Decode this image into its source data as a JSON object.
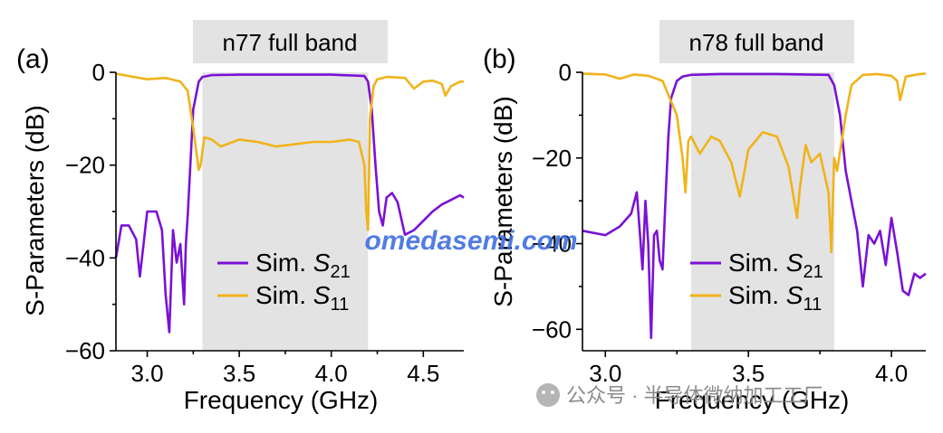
{
  "watermark": "omedasemi.com",
  "wechat_text": "公众号 · 半导体微纳加工工厂",
  "colors": {
    "s21": "#7a12d6",
    "s11": "#f0b31a",
    "band": "#e3e3e3",
    "watermark": "#3f6fe0"
  },
  "legend": {
    "s21_prefix": "Sim. ",
    "s21_var": "S",
    "s21_sub": "21",
    "s11_prefix": "Sim. ",
    "s11_var": "S",
    "s11_sub": "11"
  },
  "chart_data": [
    {
      "panel": "(a)",
      "type": "line",
      "title": "n77 full band",
      "xlabel": "Frequency (GHz)",
      "ylabel": "S-Parameters (dB)",
      "xlim": [
        2.83,
        4.72
      ],
      "ylim": [
        -60,
        0
      ],
      "xticks": [
        3.0,
        3.5,
        4.0,
        4.5
      ],
      "xtick_labels": [
        "3.0",
        "3.5",
        "4.0",
        "4.5"
      ],
      "yticks": [
        0,
        -20,
        -40,
        -60
      ],
      "ytick_labels": [
        "0",
        "−20",
        "−40",
        "−60"
      ],
      "shaded_band": [
        3.3,
        4.2
      ],
      "legend_position": "lower-center",
      "series": [
        {
          "name": "Sim. S21",
          "color": "#7a12d6",
          "x": [
            2.83,
            2.86,
            2.9,
            2.94,
            2.96,
            2.98,
            3.0,
            3.05,
            3.08,
            3.1,
            3.12,
            3.14,
            3.16,
            3.18,
            3.2,
            3.21,
            3.22,
            3.25,
            3.28,
            3.3,
            3.35,
            3.5,
            4.0,
            4.18,
            4.2,
            4.22,
            4.24,
            4.26,
            4.28,
            4.3,
            4.33,
            4.36,
            4.4,
            4.45,
            4.5,
            4.55,
            4.6,
            4.65,
            4.7,
            4.72
          ],
          "y": [
            -40,
            -33,
            -33,
            -36,
            -44,
            -37,
            -30,
            -30,
            -34,
            -48,
            -56,
            -34,
            -41,
            -37,
            -50,
            -37,
            -31,
            -8,
            -2,
            -1,
            -0.6,
            -0.5,
            -0.5,
            -0.8,
            -2,
            -8,
            -20,
            -30,
            -33,
            -27,
            -26,
            -28,
            -35,
            -34,
            -32,
            -30,
            -28.5,
            -27.5,
            -26.5,
            -27
          ]
        },
        {
          "name": "Sim. S11",
          "color": "#f0b31a",
          "x": [
            2.83,
            2.9,
            3.0,
            3.1,
            3.18,
            3.22,
            3.25,
            3.28,
            3.29,
            3.31,
            3.35,
            3.4,
            3.5,
            3.6,
            3.7,
            3.8,
            3.9,
            4.0,
            4.1,
            4.15,
            4.18,
            4.19,
            4.2,
            4.21,
            4.23,
            4.25,
            4.3,
            4.4,
            4.45,
            4.5,
            4.55,
            4.6,
            4.62,
            4.65,
            4.7,
            4.72
          ],
          "y": [
            -0.3,
            -0.8,
            -1.5,
            -1.2,
            -2,
            -4,
            -12,
            -21,
            -20,
            -14,
            -14.5,
            -16,
            -14.5,
            -15,
            -16,
            -15.5,
            -15,
            -15,
            -14.5,
            -15,
            -20,
            -30,
            -34,
            -10,
            -3,
            -1.5,
            -1,
            -1.2,
            -3.5,
            -2,
            -1.8,
            -2.5,
            -5,
            -3,
            -2,
            -2
          ]
        }
      ]
    },
    {
      "panel": "(b)",
      "type": "line",
      "title": "n78 full band",
      "xlabel": "Frequency (GHz)",
      "ylabel": "S-Parameters (dB)",
      "xlim": [
        2.92,
        4.12
      ],
      "ylim": [
        -65,
        0
      ],
      "xticks": [
        3.0,
        3.5,
        4.0
      ],
      "xtick_labels": [
        "3.0",
        "3.5",
        "4.0"
      ],
      "yticks": [
        0,
        -20,
        -40,
        -60
      ],
      "ytick_labels": [
        "0",
        "−20",
        "−40",
        "−60"
      ],
      "shaded_band": [
        3.3,
        3.8
      ],
      "legend_position": "lower-center",
      "series": [
        {
          "name": "Sim. S21",
          "color": "#7a12d6",
          "x": [
            2.92,
            3.0,
            3.05,
            3.09,
            3.11,
            3.12,
            3.13,
            3.14,
            3.15,
            3.16,
            3.17,
            3.18,
            3.19,
            3.2,
            3.21,
            3.22,
            3.23,
            3.25,
            3.27,
            3.3,
            3.4,
            3.6,
            3.78,
            3.8,
            3.82,
            3.84,
            3.86,
            3.88,
            3.9,
            3.92,
            3.94,
            3.96,
            3.98,
            4.0,
            4.02,
            4.04,
            4.06,
            4.08,
            4.1,
            4.12
          ],
          "y": [
            -37,
            -38,
            -36,
            -33,
            -28,
            -37,
            -46,
            -30,
            -40,
            -62,
            -38,
            -37,
            -44,
            -46,
            -30,
            -15,
            -6,
            -2,
            -1,
            -0.6,
            -0.4,
            -0.4,
            -0.6,
            -3,
            -10,
            -23,
            -30,
            -37,
            -50,
            -38,
            -40,
            -37,
            -45,
            -34,
            -42,
            -51,
            -52,
            -47,
            -48,
            -47
          ]
        },
        {
          "name": "Sim. S11",
          "color": "#f0b31a",
          "x": [
            2.92,
            3.0,
            3.05,
            3.1,
            3.15,
            3.2,
            3.25,
            3.27,
            3.28,
            3.29,
            3.3,
            3.33,
            3.37,
            3.4,
            3.44,
            3.47,
            3.5,
            3.55,
            3.6,
            3.64,
            3.67,
            3.68,
            3.7,
            3.72,
            3.75,
            3.78,
            3.79,
            3.8,
            3.81,
            3.84,
            3.86,
            3.9,
            3.95,
            4.0,
            4.02,
            4.03,
            4.05,
            4.1,
            4.12
          ],
          "y": [
            -0.3,
            -0.5,
            -1.5,
            -0.5,
            -0.8,
            -2,
            -10,
            -20,
            -28,
            -16,
            -15,
            -19,
            -15,
            -16,
            -21,
            -29,
            -18,
            -14,
            -15,
            -22,
            -34,
            -27,
            -17,
            -21,
            -19,
            -28,
            -42,
            -20,
            -23,
            -10,
            -3,
            -0.6,
            -0.4,
            -0.8,
            -2,
            -6.5,
            -1,
            -0.4,
            -0.3
          ]
        }
      ]
    }
  ]
}
